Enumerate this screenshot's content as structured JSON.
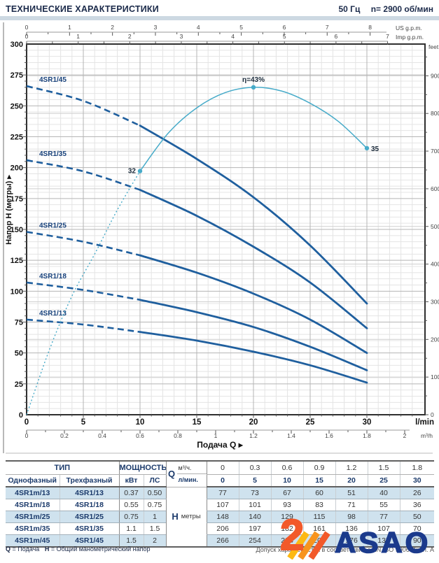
{
  "header": {
    "title": "ТЕХНИЧЕСКИЕ ХАРАКТЕРИСТИКИ",
    "frequency": "50 Гц",
    "speed": "n= 2900 об/мин"
  },
  "chart_data": {
    "type": "line",
    "xlabel": "Подача Q",
    "ylabel": "Напор H (метры)",
    "x_unit_primary": "l/min",
    "x_unit_secondary": "m³/h",
    "x_unit_top1": "US g.p.m.",
    "x_unit_top2": "Imp g.p.m.",
    "y_unit_right": "feet",
    "x_range_lmin": [
      0,
      35
    ],
    "y_range_m": [
      0,
      300
    ],
    "x_ticks_lmin": [
      0,
      5,
      10,
      15,
      20,
      25,
      30
    ],
    "x_ticks_m3h": [
      0,
      0.2,
      0.4,
      0.6,
      0.8,
      1,
      1.2,
      1.4,
      1.6,
      1.8,
      2
    ],
    "x_ticks_usgpm": [
      0,
      1,
      2,
      3,
      4,
      5,
      6,
      7,
      8
    ],
    "x_ticks_impgpm": [
      0,
      1,
      2,
      3,
      4,
      5,
      6,
      7
    ],
    "y_ticks_m": [
      0,
      25,
      50,
      75,
      100,
      125,
      150,
      175,
      200,
      225,
      250,
      275,
      300
    ],
    "y_ticks_feet": [
      0,
      100,
      200,
      300,
      400,
      500,
      600,
      700,
      800,
      900
    ],
    "q_lmin": [
      0,
      5,
      10,
      15,
      20,
      25,
      30
    ],
    "series": [
      {
        "name": "4SR1/13",
        "h_m": [
          77,
          73,
          67,
          60,
          51,
          40,
          26
        ]
      },
      {
        "name": "4SR1/18",
        "h_m": [
          107,
          101,
          93,
          83,
          71,
          55,
          36
        ]
      },
      {
        "name": "4SR1/25",
        "h_m": [
          148,
          140,
          129,
          115,
          98,
          77,
          50
        ]
      },
      {
        "name": "4SR1/35",
        "h_m": [
          206,
          197,
          182,
          161,
          136,
          107,
          70
        ]
      },
      {
        "name": "4SR1/45",
        "h_m": [
          266,
          254,
          234,
          207,
          176,
          137,
          90
        ]
      }
    ],
    "efficiency": {
      "q_lmin": [
        0,
        2,
        4,
        6,
        8,
        10,
        12.5,
        15,
        17.5,
        20,
        22.5,
        25,
        27.5,
        30
      ],
      "eta_pct": [
        0,
        8.5,
        15.6,
        21.1,
        26.9,
        32,
        37,
        40.3,
        42.3,
        43,
        42.5,
        40.9,
        38.5,
        35
      ],
      "meters_per_pct": 6.163,
      "labels": [
        {
          "q": 10,
          "text": "32"
        },
        {
          "q": 20,
          "text": "η=43%"
        },
        {
          "q": 30,
          "text": "35"
        }
      ]
    },
    "colors": {
      "pump_curve": "#1f5f9e",
      "efficiency_curve": "#47abc9",
      "grid_minor": "#e4e4e4",
      "grid_major": "#b5b5b5",
      "grid_feet": "#cfcfcf"
    }
  },
  "table": {
    "headers": {
      "type": "ТИП",
      "power": "МОЩНОСТЬ",
      "single": "Однофазный",
      "three": "Трехфазный",
      "kw": "кВт",
      "hp": "ЛС",
      "q": "Q",
      "m3h": "м³/ч.",
      "lmin": "л/мин.",
      "h": "H",
      "meters": "метры"
    },
    "q_m3h": [
      "0",
      "0.3",
      "0.6",
      "0.9",
      "1.2",
      "1.5",
      "1.8"
    ],
    "q_lmin": [
      "0",
      "5",
      "10",
      "15",
      "20",
      "25",
      "30"
    ],
    "rows": [
      {
        "single": "4SR1m/13",
        "three": "4SR1/13",
        "kw": "0.37",
        "hp": "0.50"
      },
      {
        "single": "4SR1m/18",
        "three": "4SR1/18",
        "kw": "0.55",
        "hp": "0.75"
      },
      {
        "single": "4SR1m/25",
        "three": "4SR1/25",
        "kw": "0.75",
        "hp": "1"
      },
      {
        "single": "4SR1m/35",
        "three": "4SR1/35",
        "kw": "1.1",
        "hp": "1.5"
      },
      {
        "single": "4SR1m/45",
        "three": "4SR1/45",
        "kw": "1.5",
        "hp": "2"
      }
    ]
  },
  "footer": {
    "q_label": "Q",
    "q_def": "= Подача",
    "h_label": "H",
    "h_def": "= Общий манометрический напор",
    "tolerance": "Допуск характеристик в соответствии с EN ISO 9906 Прил. A"
  },
  "logo": {
    "mark": "2",
    "text": "ASAO"
  }
}
